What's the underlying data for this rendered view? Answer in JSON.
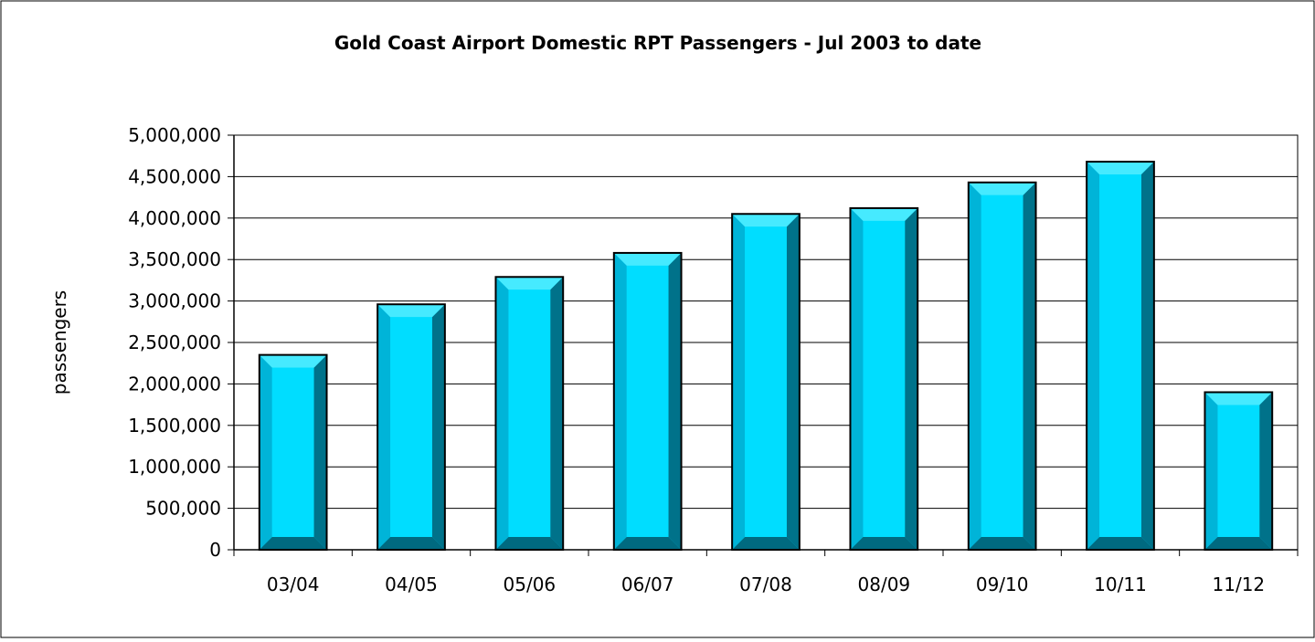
{
  "chart_data": {
    "type": "bar",
    "title": "Gold Coast Airport Domestic RPT Passengers - Jul 2003 to date",
    "xlabel": "",
    "ylabel": "passengers",
    "categories": [
      "03/04",
      "04/05",
      "05/06",
      "06/07",
      "07/08",
      "08/09",
      "09/10",
      "10/11",
      "11/12"
    ],
    "series": [
      {
        "values": [
          2350000,
          2960000,
          3290000,
          3580000,
          4050000,
          4120000,
          4430000,
          4680000,
          1900000
        ]
      }
    ],
    "ylim": [
      0,
      5000000
    ],
    "yticks": [
      0,
      500000,
      1000000,
      1500000,
      2000000,
      2500000,
      3000000,
      3500000,
      4000000,
      4500000,
      5000000
    ],
    "ytick_labels": [
      "0",
      "500,000",
      "1,000,000",
      "1,500,000",
      "2,000,000",
      "2,500,000",
      "3,000,000",
      "3,500,000",
      "4,000,000",
      "4,500,000",
      "5,000,000"
    ],
    "grid": true,
    "legend": "none",
    "colors": {
      "bar_face": "#00DDFF",
      "bar_left_bevel": "#00B4D8",
      "bar_right_bevel": "#00728A",
      "bar_bottom_bevel": "#006A80",
      "bar_top_bevel": "#46EAFF",
      "bar_outline": "#000000",
      "gridline": "#000000",
      "frame": "#000000"
    }
  }
}
